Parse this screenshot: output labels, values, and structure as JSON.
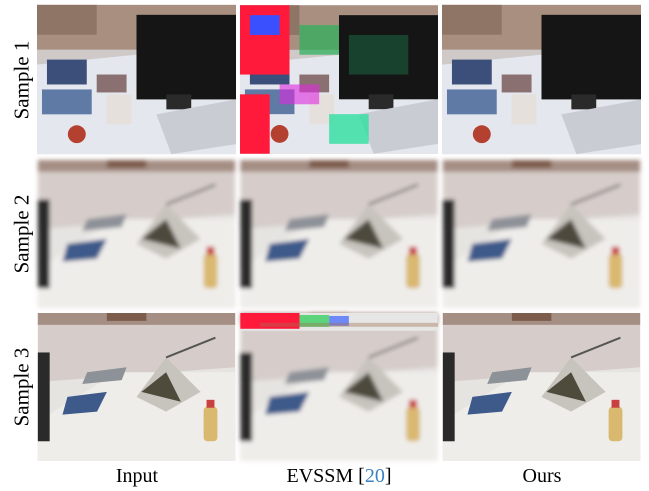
{
  "rows": [
    {
      "label": "Sample 1"
    },
    {
      "label": "Sample 2"
    },
    {
      "label": "Sample 3"
    }
  ],
  "columns": [
    {
      "label": "Input"
    },
    {
      "label": "EVSSM",
      "citation": {
        "open": "[",
        "ref": "20",
        "close": "]"
      }
    },
    {
      "label": "Ours"
    }
  ]
}
